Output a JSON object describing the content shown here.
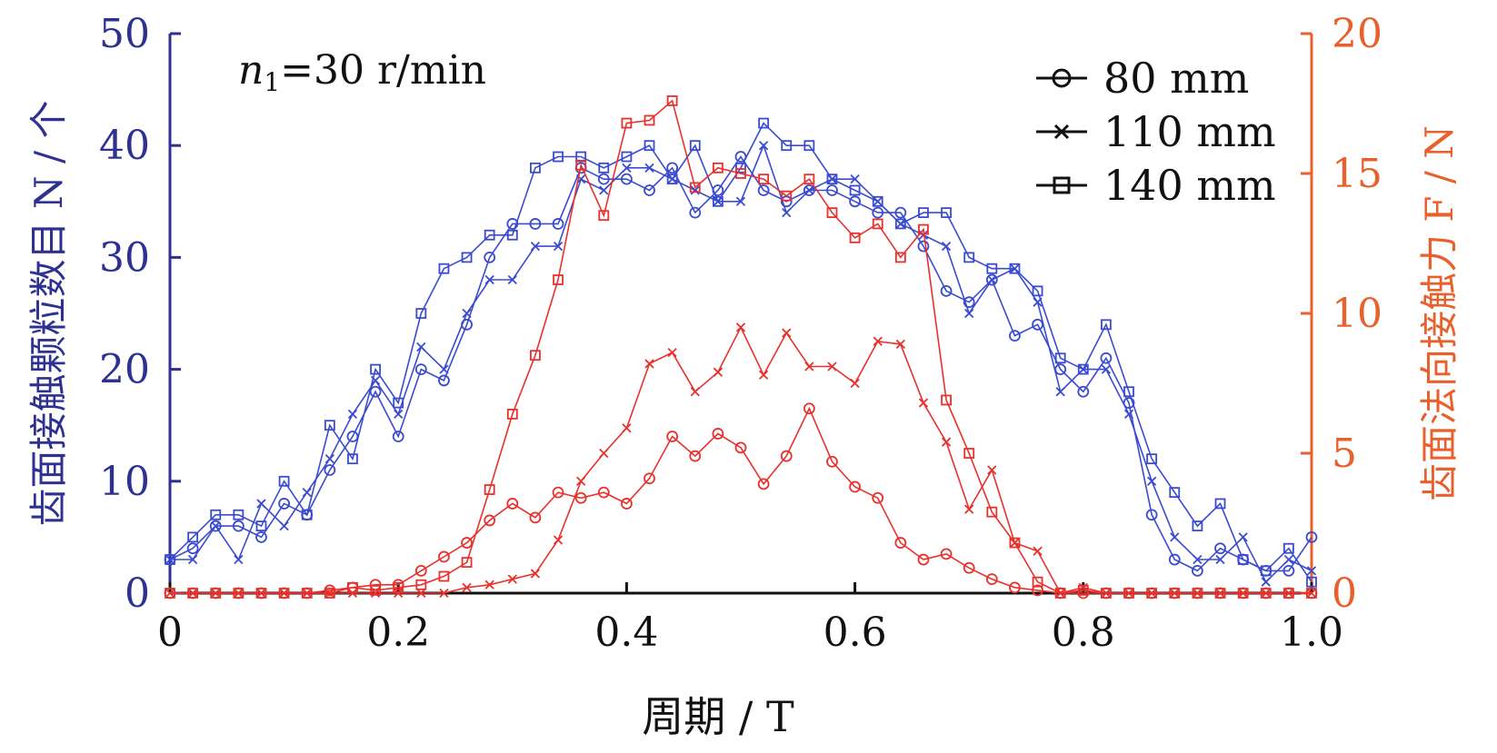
{
  "chart_data": {
    "type": "line",
    "annotation": "n1=30 r/min",
    "annotation_main": "n",
    "annotation_sub": "1",
    "annotation_rest": "=30 r/min",
    "xlabel": "周期 / T",
    "ylabel_left": "齿面接触颗粒数目 N / 个",
    "ylabel_right": "齿面法向接触力 F / N",
    "xlim": [
      0,
      1.0
    ],
    "ylim_left": [
      0,
      50
    ],
    "ylim_right": [
      0,
      20
    ],
    "x_ticks": [
      "0",
      "0.2",
      "0.4",
      "0.6",
      "0.8",
      "1.0"
    ],
    "x_tick_values": [
      0,
      0.2,
      0.4,
      0.6,
      0.8,
      1.0
    ],
    "y_ticks_left": [
      "0",
      "10",
      "20",
      "30",
      "40",
      "50"
    ],
    "y_tick_values_left": [
      0,
      10,
      20,
      30,
      40,
      50
    ],
    "y_ticks_right": [
      "0",
      "5",
      "10",
      "15",
      "20"
    ],
    "y_tick_values_right": [
      0,
      5,
      10,
      15,
      20
    ],
    "grid": false,
    "legend_position": "top-right",
    "colors": {
      "left_axis": "#2e3192",
      "right_axis": "#e8602c",
      "particle_lines": "#3a4bd0",
      "force_lines": "#e8312c",
      "legend": "#111111"
    },
    "legend": [
      {
        "label": "80 mm",
        "marker": "circle"
      },
      {
        "label": "110 mm",
        "marker": "x"
      },
      {
        "label": "140 mm",
        "marker": "square"
      }
    ],
    "x": [
      0,
      0.02,
      0.04,
      0.06,
      0.08,
      0.1,
      0.12,
      0.14,
      0.16,
      0.18,
      0.2,
      0.22,
      0.24,
      0.26,
      0.28,
      0.3,
      0.32,
      0.34,
      0.36,
      0.38,
      0.4,
      0.42,
      0.44,
      0.46,
      0.48,
      0.5,
      0.52,
      0.54,
      0.56,
      0.58,
      0.6,
      0.62,
      0.64,
      0.66,
      0.68,
      0.7,
      0.72,
      0.74,
      0.76,
      0.78,
      0.8,
      0.82,
      0.84,
      0.86,
      0.88,
      0.9,
      0.92,
      0.94,
      0.96,
      0.98,
      1.0
    ],
    "series": [
      {
        "name": "80 mm",
        "axis": "left",
        "marker": "circle",
        "values": [
          3,
          4,
          6,
          6,
          5,
          8,
          7,
          11,
          14,
          18,
          14,
          20,
          19,
          24,
          30,
          33,
          33,
          33,
          38,
          37,
          37,
          36,
          38,
          34,
          36,
          39,
          36,
          35,
          36,
          36,
          35,
          34,
          34,
          31,
          27,
          26,
          28,
          23,
          24,
          20,
          18,
          21,
          17,
          7,
          3,
          2,
          4,
          3,
          2,
          2,
          5
        ]
      },
      {
        "name": "110 mm",
        "axis": "left",
        "marker": "x",
        "values": [
          3,
          3,
          6,
          3,
          8,
          6,
          9,
          12,
          16,
          19,
          16,
          22,
          20,
          25,
          28,
          28,
          31,
          31,
          37,
          36,
          38,
          38,
          37,
          36,
          35,
          35,
          40,
          34,
          36,
          37,
          37,
          35,
          33,
          32,
          31,
          25,
          28,
          29,
          26,
          18,
          20,
          20,
          16,
          10,
          5,
          3,
          3,
          5,
          1,
          3,
          2
        ]
      },
      {
        "name": "140 mm",
        "axis": "left",
        "marker": "square",
        "values": [
          3,
          5,
          7,
          7,
          6,
          10,
          7,
          15,
          12,
          20,
          17,
          25,
          29,
          30,
          32,
          32,
          38,
          39,
          39,
          38,
          39,
          40,
          37,
          40,
          35,
          38,
          42,
          40,
          40,
          37,
          36,
          35,
          33,
          34,
          34,
          30,
          29,
          29,
          27,
          21,
          20,
          24,
          18,
          12,
          9,
          6,
          8,
          3,
          2,
          4,
          1
        ]
      },
      {
        "name": "80 mm",
        "axis": "right",
        "marker": "circle",
        "values": [
          0,
          0,
          0,
          0,
          0,
          0,
          0,
          0.1,
          0.2,
          0.3,
          0.3,
          0.8,
          1.3,
          1.8,
          2.6,
          3.2,
          2.7,
          3.6,
          3.4,
          3.6,
          3.2,
          4.1,
          5.6,
          4.9,
          5.7,
          5.2,
          3.9,
          4.9,
          6.6,
          4.7,
          3.8,
          3.4,
          1.8,
          1.2,
          1.4,
          0.9,
          0.5,
          0.2,
          0.1,
          0,
          0,
          0,
          0,
          0,
          0,
          0,
          0,
          0,
          0,
          0,
          0
        ]
      },
      {
        "name": "110 mm",
        "axis": "right",
        "marker": "x",
        "values": [
          0,
          0,
          0,
          0,
          0,
          0,
          0,
          0,
          0,
          0,
          0,
          0,
          0,
          0.2,
          0.3,
          0.5,
          0.7,
          1.9,
          4.0,
          5.0,
          5.9,
          8.2,
          8.6,
          7.2,
          7.9,
          9.5,
          7.8,
          9.3,
          8.1,
          8.1,
          7.5,
          9.0,
          8.9,
          6.8,
          5.4,
          3.0,
          4.4,
          1.8,
          1.5,
          0,
          0.2,
          0,
          0,
          0,
          0,
          0,
          0,
          0,
          0,
          0,
          0
        ]
      },
      {
        "name": "140 mm",
        "axis": "right",
        "marker": "square",
        "values": [
          0,
          0,
          0,
          0,
          0,
          0,
          0,
          0,
          0.2,
          0.1,
          0.2,
          0.3,
          0.6,
          1.1,
          3.7,
          6.4,
          8.5,
          11.2,
          15.3,
          13.5,
          16.8,
          16.9,
          17.6,
          14.5,
          15.2,
          15.0,
          14.8,
          14.2,
          14.8,
          13.6,
          12.7,
          13.2,
          12.0,
          13.0,
          6.9,
          5.0,
          2.9,
          1.8,
          0.4,
          0,
          0.1,
          0,
          0,
          0,
          0,
          0,
          0,
          0,
          0,
          0,
          0
        ]
      }
    ]
  }
}
